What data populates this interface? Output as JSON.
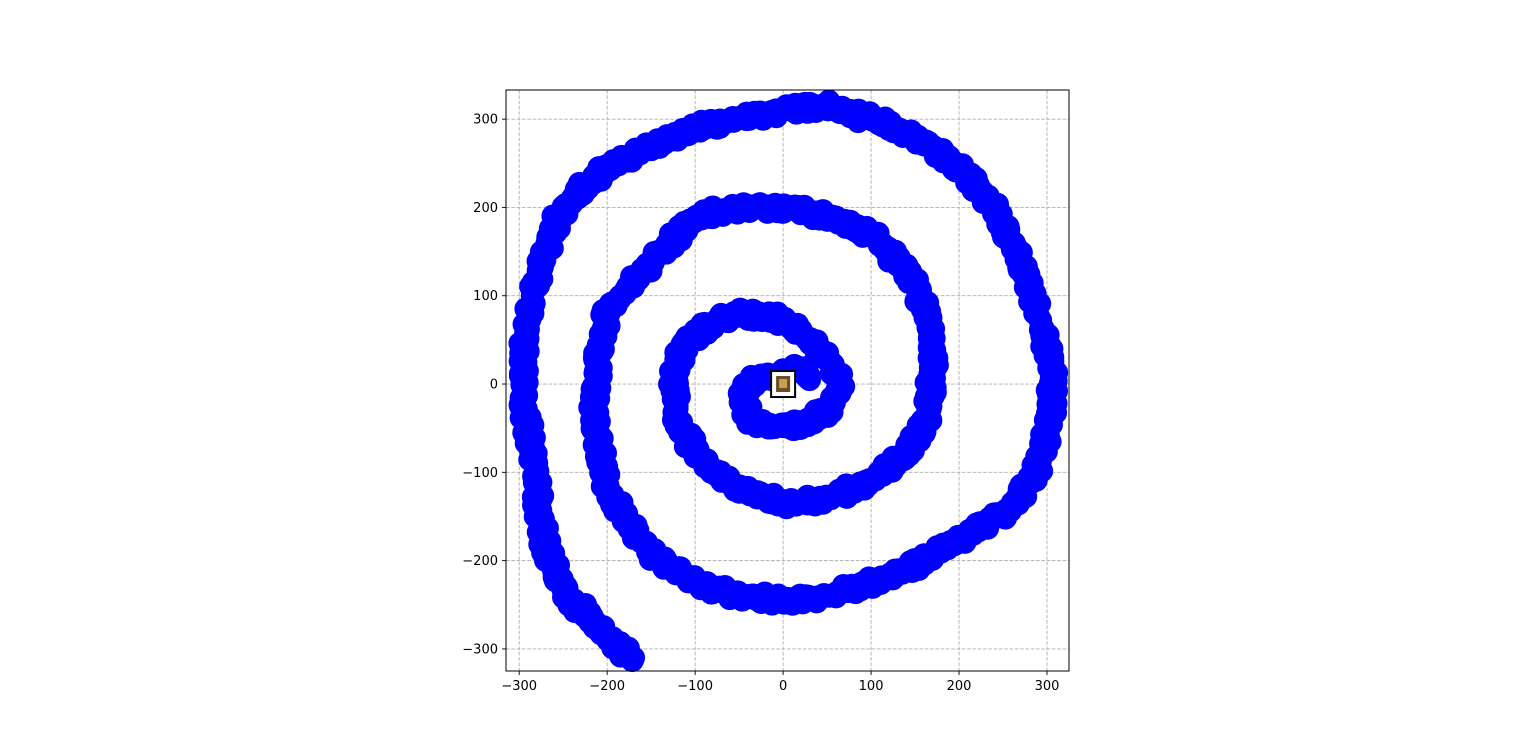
{
  "chart_data": {
    "type": "scatter",
    "title": "",
    "xlabel": "",
    "ylabel": "",
    "xlim": [
      -315,
      325
    ],
    "ylim": [
      -325,
      333
    ],
    "xticks": [
      -300,
      -200,
      -100,
      0,
      100,
      200,
      300
    ],
    "yticks": [
      -300,
      -200,
      -100,
      0,
      100,
      200,
      300
    ],
    "xtick_labels": [
      "−300",
      "−200",
      "−100",
      "0",
      "100",
      "200",
      "300"
    ],
    "ytick_labels": [
      "−300",
      "−200",
      "−100",
      "0",
      "100",
      "200",
      "300"
    ],
    "grid": true,
    "marker": "open circle",
    "marker_color": "#0000ff",
    "series": [
      {
        "spiral_path": [
          [
            -170,
            -310
          ],
          [
            -190,
            -295
          ],
          [
            -215,
            -270
          ],
          [
            -245,
            -240
          ],
          [
            -265,
            -200
          ],
          [
            -275,
            -160
          ],
          [
            -280,
            -120
          ],
          [
            -285,
            -70
          ],
          [
            -295,
            -20
          ],
          [
            -295,
            40
          ],
          [
            -285,
            100
          ],
          [
            -270,
            150
          ],
          [
            -255,
            190
          ],
          [
            -235,
            215
          ],
          [
            -200,
            245
          ],
          [
            -150,
            270
          ],
          [
            -100,
            290
          ],
          [
            -50,
            300
          ],
          [
            0,
            310
          ],
          [
            50,
            315
          ],
          [
            100,
            300
          ],
          [
            150,
            280
          ],
          [
            200,
            245
          ],
          [
            240,
            200
          ],
          [
            270,
            140
          ],
          [
            290,
            80
          ],
          [
            305,
            20
          ],
          [
            305,
            -40
          ],
          [
            290,
            -90
          ],
          [
            260,
            -140
          ],
          [
            210,
            -170
          ],
          [
            150,
            -205
          ],
          [
            100,
            -225
          ],
          [
            50,
            -240
          ],
          [
            0,
            -245
          ],
          [
            -50,
            -240
          ],
          [
            -100,
            -225
          ],
          [
            -140,
            -200
          ],
          [
            -175,
            -160
          ],
          [
            -200,
            -120
          ],
          [
            -210,
            -70
          ],
          [
            -215,
            -20
          ],
          [
            -210,
            30
          ],
          [
            -200,
            80
          ],
          [
            -175,
            110
          ],
          [
            -140,
            150
          ],
          [
            -100,
            190
          ],
          [
            -50,
            200
          ],
          [
            0,
            200
          ],
          [
            50,
            190
          ],
          [
            100,
            170
          ],
          [
            140,
            130
          ],
          [
            165,
            80
          ],
          [
            170,
            20
          ],
          [
            165,
            -40
          ],
          [
            140,
            -80
          ],
          [
            100,
            -110
          ],
          [
            50,
            -130
          ],
          [
            0,
            -135
          ],
          [
            -50,
            -120
          ],
          [
            -90,
            -90
          ],
          [
            -120,
            -45
          ],
          [
            -125,
            0
          ],
          [
            -115,
            40
          ],
          [
            -90,
            65
          ],
          [
            -50,
            80
          ],
          [
            -10,
            75
          ],
          [
            25,
            55
          ],
          [
            50,
            30
          ],
          [
            65,
            0
          ],
          [
            50,
            -30
          ],
          [
            20,
            -45
          ],
          [
            -10,
            -50
          ],
          [
            -40,
            -40
          ],
          [
            -45,
            -10
          ],
          [
            -30,
            5
          ],
          [
            -10,
            10
          ],
          [
            5,
            15
          ],
          [
            20,
            20
          ],
          [
            30,
            5
          ]
        ]
      }
    ],
    "annotations": [
      {
        "type": "image-marker",
        "x": 0,
        "y": 0
      }
    ]
  }
}
